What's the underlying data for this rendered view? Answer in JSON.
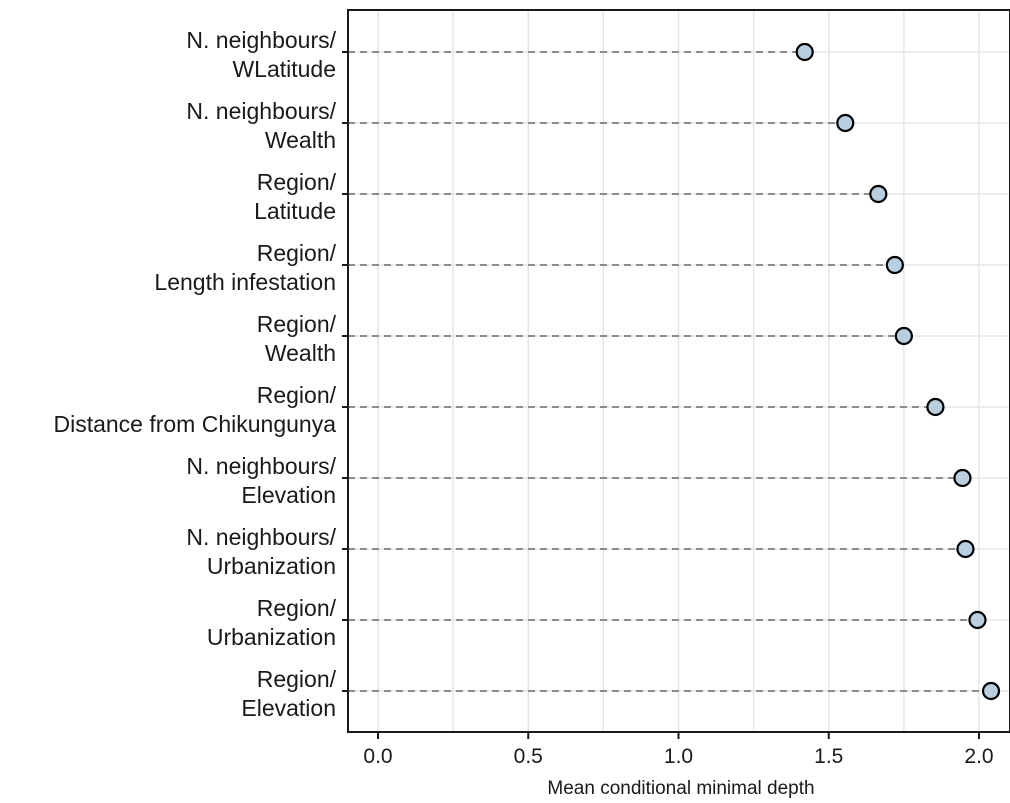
{
  "chart_data": {
    "type": "scatter",
    "xlabel": "Mean conditional minimal depth",
    "xlim": [
      -0.1,
      2.1
    ],
    "x_ticks": [
      "0.0",
      "0.5",
      "1.0",
      "1.5",
      "2.0"
    ],
    "grid": true,
    "colors": {
      "point_fill": "#b9cfe0",
      "point_stroke": "#000000",
      "guide_line": "#8c8c8c",
      "grid": "#e6e6e6"
    },
    "categories": [
      [
        "N. neighbours/",
        "WLatitude"
      ],
      [
        "N. neighbours/",
        "Wealth"
      ],
      [
        "Region/",
        "Latitude"
      ],
      [
        "Region/",
        "Length infestation"
      ],
      [
        "Region/",
        "Wealth"
      ],
      [
        "Region/",
        "Distance from Chikungunya"
      ],
      [
        "N. neighbours/",
        "Elevation"
      ],
      [
        "N. neighbours/",
        "Urbanization"
      ],
      [
        "Region/",
        "Urbanization"
      ],
      [
        "Region/",
        "Elevation"
      ]
    ],
    "values": [
      1.42,
      1.555,
      1.665,
      1.72,
      1.75,
      1.855,
      1.945,
      1.955,
      1.995,
      2.04
    ]
  }
}
